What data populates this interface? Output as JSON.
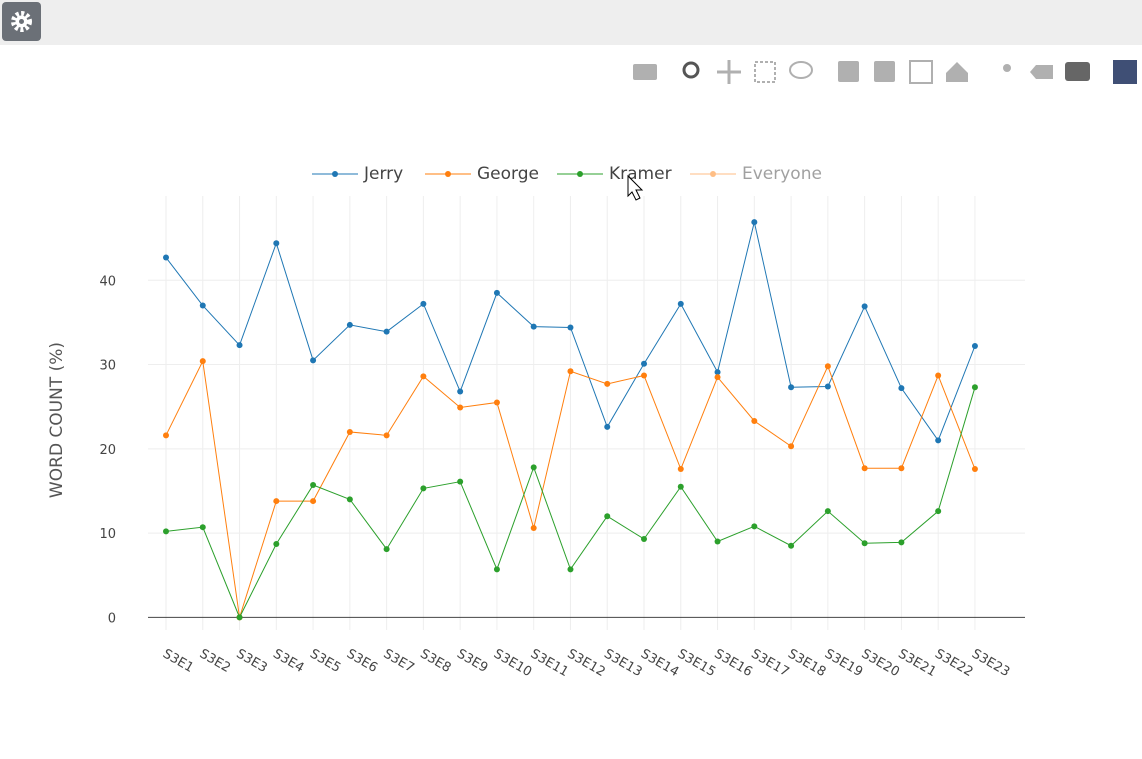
{
  "chart_data": {
    "type": "line",
    "ylabel": "WORD COUNT (%)",
    "categories": [
      "S3E1",
      "S3E2",
      "S3E3",
      "S3E4",
      "S3E5",
      "S3E6",
      "S3E7",
      "S3E8",
      "S3E9",
      "S3E10",
      "S3E11",
      "S3E12",
      "S3E13",
      "S3E14",
      "S3E15",
      "S3E16",
      "S3E17",
      "S3E18",
      "S3E19",
      "S3E20",
      "S3E21",
      "S3E22",
      "S3E23"
    ],
    "series": [
      {
        "name": "Jerry",
        "color": "#1f77b4",
        "values": [
          42.7,
          37.0,
          32.3,
          44.4,
          30.5,
          34.7,
          33.9,
          37.2,
          26.8,
          38.5,
          34.5,
          34.4,
          22.6,
          30.1,
          37.2,
          29.1,
          46.9,
          27.3,
          27.4,
          36.9,
          27.2,
          21.0,
          32.2
        ]
      },
      {
        "name": "George",
        "color": "#ff7f0e",
        "values": [
          21.6,
          30.4,
          0,
          13.8,
          13.8,
          22.0,
          21.6,
          28.6,
          24.9,
          25.5,
          10.6,
          29.2,
          27.7,
          28.7,
          17.6,
          28.5,
          23.3,
          20.3,
          29.8,
          17.7,
          17.7,
          28.7,
          17.6
        ]
      },
      {
        "name": "Kramer",
        "color": "#2ca02c",
        "values": [
          10.2,
          10.7,
          0,
          8.7,
          15.7,
          14.0,
          8.1,
          15.3,
          16.1,
          5.7,
          17.8,
          5.7,
          12.0,
          9.3,
          15.5,
          9.0,
          10.8,
          8.5,
          12.6,
          8.8,
          8.9,
          12.6,
          27.3
        ]
      },
      {
        "name": "Everyone",
        "color": "#ff7f0e",
        "visible": "legendonly"
      }
    ],
    "ylim": [
      -1.5,
      50
    ],
    "yticks": [
      0,
      10,
      20,
      30,
      40
    ],
    "grid": true
  }
}
